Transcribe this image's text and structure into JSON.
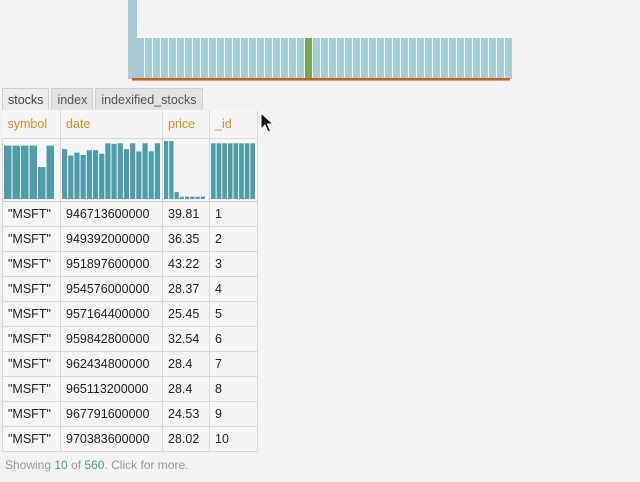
{
  "top_chart": {
    "bar_values": [
      1,
      1,
      1,
      1,
      1,
      1,
      1,
      1,
      1,
      1,
      1,
      1,
      1,
      1,
      1,
      1,
      1,
      1,
      1,
      1,
      1,
      1,
      1,
      1,
      1,
      1,
      1,
      1,
      1,
      1,
      1,
      1,
      1,
      1,
      1,
      1,
      1,
      1,
      1,
      1,
      1,
      1,
      1,
      1,
      1,
      1,
      1
    ],
    "spike_index": 0,
    "highlight_index": 21,
    "bar_color": "#a7cbd2",
    "highlight_color": "#7aa557",
    "baseline_color": "#cf5a23"
  },
  "tabs": [
    {
      "label": "stocks",
      "active": true
    },
    {
      "label": "index",
      "active": false
    },
    {
      "label": "indexified_stocks",
      "active": false
    }
  ],
  "columns": [
    {
      "label": "symbol",
      "hist": [
        0.92,
        0.92,
        0.92,
        0.92,
        0.55,
        0.92
      ]
    },
    {
      "label": "date",
      "hist": [
        0.86,
        0.75,
        0.8,
        0.76,
        0.84,
        0.84,
        0.78,
        0.96,
        0.95,
        0.96,
        0.86,
        0.96,
        0.82,
        0.96,
        0.82,
        0.96
      ]
    },
    {
      "label": "price",
      "hist": [
        1.0,
        1.0,
        0.12,
        0.04,
        0.04,
        0.04,
        0.04,
        0.04
      ]
    },
    {
      "label": "_id",
      "hist": [
        0.96,
        0.96,
        0.96,
        0.96,
        0.96,
        0.96,
        0.96,
        0.96
      ]
    }
  ],
  "rows": [
    {
      "symbol": "\"MSFT\"",
      "date": "946713600000",
      "price": "39.81",
      "id": "1"
    },
    {
      "symbol": "\"MSFT\"",
      "date": "949392000000",
      "price": "36.35",
      "id": "2"
    },
    {
      "symbol": "\"MSFT\"",
      "date": "951897600000",
      "price": "43.22",
      "id": "3"
    },
    {
      "symbol": "\"MSFT\"",
      "date": "954576000000",
      "price": "28.37",
      "id": "4"
    },
    {
      "symbol": "\"MSFT\"",
      "date": "957164400000",
      "price": "25.45",
      "id": "5"
    },
    {
      "symbol": "\"MSFT\"",
      "date": "959842800000",
      "price": "32.54",
      "id": "6"
    },
    {
      "symbol": "\"MSFT\"",
      "date": "962434800000",
      "price": "28.4",
      "id": "7"
    },
    {
      "symbol": "\"MSFT\"",
      "date": "965113200000",
      "price": "28.4",
      "id": "8"
    },
    {
      "symbol": "\"MSFT\"",
      "date": "967791600000",
      "price": "24.53",
      "id": "9"
    },
    {
      "symbol": "\"MSFT\"",
      "date": "970383600000",
      "price": "28.02",
      "id": "10"
    }
  ],
  "footer": {
    "prefix": "Showing ",
    "shown": "10",
    "middle": " of ",
    "total": "560",
    "suffix": ". Click for more."
  },
  "colors": {
    "header_text": "#e08a1a",
    "hist_bar": "#4e9ea8",
    "footer_num": "#4c9aa6"
  },
  "icons": {
    "cursor": "arrow-pointer-icon"
  }
}
